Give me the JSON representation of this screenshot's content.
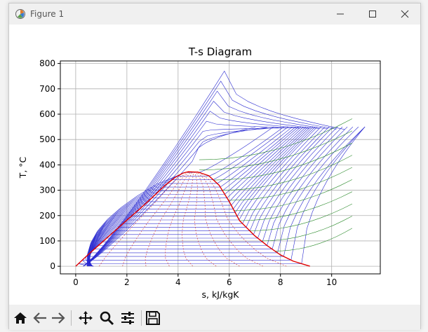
{
  "window": {
    "title": "Figure 1"
  },
  "toolbar": {
    "tools": [
      "home-icon",
      "back-icon",
      "forward-icon",
      "pan-icon",
      "zoom-icon",
      "configure-subplots-icon",
      "save-icon"
    ]
  },
  "chart_data": {
    "type": "line",
    "title": "T-s Diagram",
    "xlabel": "s, kJ/kgK",
    "ylabel": "T, °C",
    "xlim": [
      -0.6,
      11.9
    ],
    "ylim": [
      -30,
      810
    ],
    "xticks": [
      0,
      2,
      4,
      6,
      8,
      10
    ],
    "yticks": [
      0,
      100,
      200,
      300,
      400,
      500,
      600,
      700,
      800
    ],
    "grid": true,
    "colors": {
      "saturation_dome": "#e00000",
      "isobars": "#2a2ad0",
      "isochores": "#2a8a2a",
      "quality_lines": "#d03030",
      "axes": "#000000",
      "gridlines": "#b0b0b0"
    },
    "saturation_dome": {
      "x": [
        0,
        0.5,
        1.0,
        1.5,
        2.0,
        2.5,
        3.0,
        3.5,
        3.9,
        4.2,
        4.4,
        4.8,
        5.2,
        5.6,
        6.0,
        6.4,
        7.0,
        7.5,
        8.0,
        8.5,
        9.15
      ],
      "y": [
        0,
        47,
        92,
        137,
        182,
        226,
        272,
        320,
        352,
        368,
        373,
        371,
        357,
        320,
        255,
        180,
        120,
        80,
        45,
        20,
        0
      ]
    },
    "critical_point": {
      "s": 4.41,
      "T": 374
    },
    "peak_point": {
      "s": 5.95,
      "T": 770
    },
    "superheat_end": {
      "s": 11.3,
      "T": 550
    }
  }
}
